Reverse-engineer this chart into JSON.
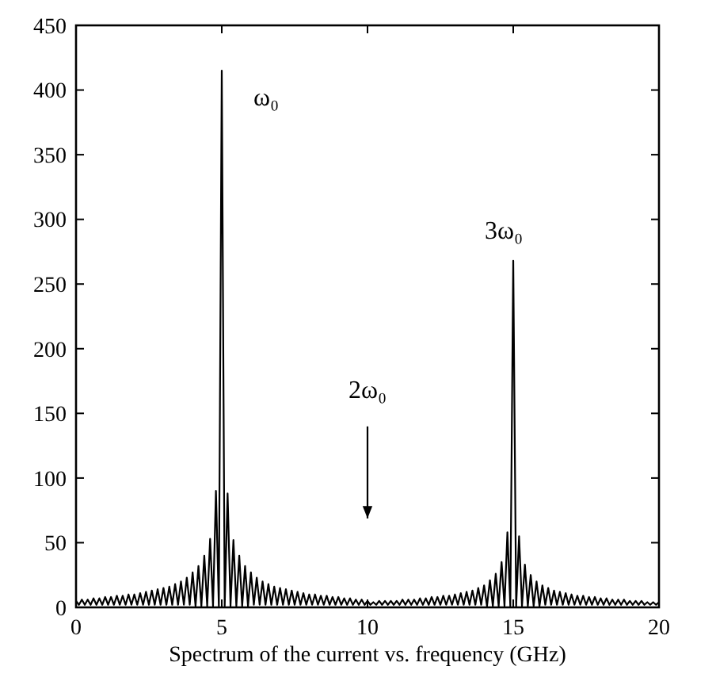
{
  "chart_data": {
    "type": "line",
    "xlabel": "Spectrum of the current vs. frequency (GHz)",
    "xlim": [
      0,
      20
    ],
    "xticks": [
      0,
      5,
      10,
      15,
      20
    ],
    "ylim": [
      0,
      450
    ],
    "yticks": [
      0,
      50,
      100,
      150,
      200,
      250,
      300,
      350,
      400,
      450
    ],
    "grid": false,
    "marker": "none",
    "line_style": "solid",
    "annotations": [
      {
        "text": "ω₀",
        "x": 5,
        "y": 415
      },
      {
        "text": "3ω₀",
        "x": 15,
        "y": 268
      },
      "2ω₀"
    ],
    "series": [
      {
        "color": "#000000",
        "x": [
          0,
          0.1,
          0.2,
          0.3,
          0.4,
          0.5,
          0.6,
          0.7,
          0.8,
          0.9,
          1,
          1.1,
          1.2,
          1.3,
          1.4,
          1.5,
          1.6,
          1.7,
          1.8,
          1.9,
          2,
          2.1,
          2.2,
          2.3,
          2.4,
          2.5,
          2.6,
          2.7,
          2.8,
          2.9,
          3,
          3.1,
          3.2,
          3.3,
          3.4,
          3.5,
          3.6,
          3.7,
          3.8,
          3.9,
          4,
          4.1,
          4.2,
          4.3,
          4.4,
          4.5,
          4.6,
          4.7,
          4.8,
          4.9,
          5,
          5.1,
          5.2,
          5.3,
          5.4,
          5.5,
          5.6,
          5.7,
          5.8,
          5.9,
          6,
          6.1,
          6.2,
          6.3,
          6.4,
          6.5,
          6.6,
          6.7,
          6.8,
          6.9,
          7,
          7.1,
          7.2,
          7.3,
          7.4,
          7.5,
          7.6,
          7.7,
          7.8,
          7.9,
          8,
          8.1,
          8.2,
          8.3,
          8.4,
          8.5,
          8.6,
          8.7,
          8.8,
          8.9,
          9,
          9.1,
          9.2,
          9.3,
          9.4,
          9.5,
          9.6,
          9.7,
          9.8,
          9.9,
          10,
          10.1,
          10.2,
          10.3,
          10.4,
          10.5,
          10.6,
          10.7,
          10.8,
          10.9,
          11,
          11.1,
          11.2,
          11.3,
          11.4,
          11.5,
          11.6,
          11.7,
          11.8,
          11.9,
          12,
          12.1,
          12.2,
          12.3,
          12.4,
          12.5,
          12.6,
          12.7,
          12.8,
          12.9,
          13,
          13.1,
          13.2,
          13.3,
          13.4,
          13.5,
          13.6,
          13.7,
          13.8,
          13.9,
          14,
          14.1,
          14.2,
          14.3,
          14.4,
          14.5,
          14.6,
          14.7,
          14.8,
          14.9,
          15,
          15.1,
          15.2,
          15.3,
          15.4,
          15.5,
          15.6,
          15.7,
          15.8,
          15.9,
          16,
          16.1,
          16.2,
          16.3,
          16.4,
          16.5,
          16.6,
          16.7,
          16.8,
          16.9,
          17,
          17.1,
          17.2,
          17.3,
          17.4,
          17.5,
          17.6,
          17.7,
          17.8,
          17.9,
          18,
          18.1,
          18.2,
          18.3,
          18.4,
          18.5,
          18.6,
          18.7,
          18.8,
          18.9,
          19,
          19.1,
          19.2,
          19.3,
          19.4,
          19.5,
          19.6,
          19.7,
          19.8,
          19.9,
          20
        ],
        "values": [
          5,
          2,
          6,
          2,
          6,
          2,
          7,
          2,
          7,
          2,
          8,
          2,
          8,
          2,
          9,
          2,
          9,
          2,
          10,
          2,
          10,
          2,
          11,
          2,
          12,
          2,
          13,
          2,
          14,
          2,
          15,
          2,
          16,
          2,
          18,
          2,
          20,
          2,
          23,
          2,
          27,
          1,
          32,
          1,
          40,
          1,
          53,
          1,
          90,
          1,
          415,
          1,
          88,
          1,
          52,
          1,
          40,
          1,
          32,
          1,
          27,
          2,
          23,
          2,
          20,
          2,
          18,
          2,
          16,
          2,
          15,
          2,
          14,
          2,
          13,
          2,
          12,
          2,
          11,
          2,
          10,
          2,
          10,
          2,
          9,
          2,
          9,
          2,
          8,
          2,
          8,
          2,
          7,
          2,
          7,
          2,
          6,
          2,
          6,
          2,
          5,
          2,
          4,
          2,
          5,
          2,
          5,
          2,
          5,
          2,
          5,
          2,
          6,
          2,
          6,
          2,
          6,
          2,
          7,
          2,
          7,
          2,
          8,
          2,
          8,
          2,
          9,
          2,
          9,
          2,
          10,
          2,
          11,
          2,
          12,
          2,
          13,
          2,
          15,
          2,
          17,
          1,
          21,
          1,
          26,
          1,
          35,
          1,
          58,
          1,
          268,
          1,
          55,
          1,
          33,
          1,
          25,
          1,
          20,
          1,
          17,
          2,
          15,
          2,
          13,
          2,
          12,
          2,
          11,
          2,
          10,
          2,
          9,
          2,
          9,
          2,
          8,
          2,
          8,
          2,
          7,
          2,
          7,
          2,
          6,
          2,
          6,
          2,
          6,
          2,
          5,
          2,
          5,
          2,
          5,
          2,
          4,
          2,
          4,
          2,
          4
        ]
      }
    ]
  }
}
